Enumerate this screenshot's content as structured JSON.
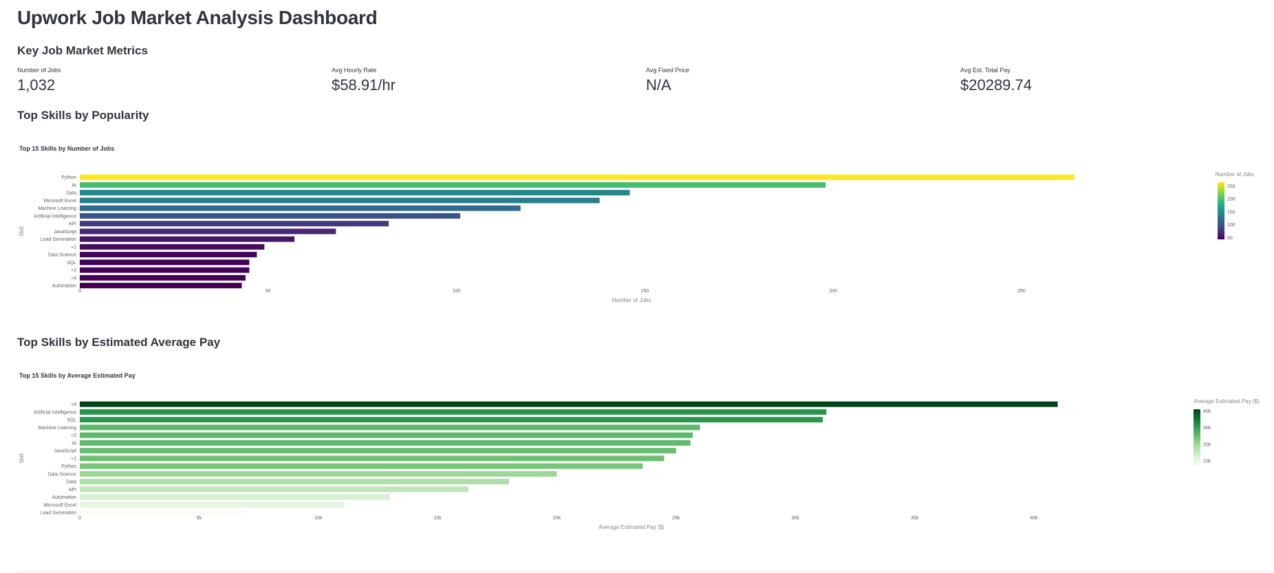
{
  "title": "Upwork Job Market Analysis Dashboard",
  "metrics_heading": "Key Job Market Metrics",
  "metrics": [
    {
      "label": "Number of Jobs",
      "value": "1,032"
    },
    {
      "label": "Avg Hourly Rate",
      "value": "$58.91/hr"
    },
    {
      "label": "Avg Fixed Price",
      "value": "N/A"
    },
    {
      "label": "Avg Est. Total Pay",
      "value": "$20289.74"
    }
  ],
  "popularity_heading": "Top Skills by Popularity",
  "pay_heading": "Top Skills by Estimated Average Pay",
  "colors": {
    "viridis": [
      "#440154",
      "#482878",
      "#3e4989",
      "#31688e",
      "#26828e",
      "#1f9e89",
      "#35b779",
      "#6ece58",
      "#b5de2b",
      "#fde725"
    ],
    "greens": [
      "#f7fcf5",
      "#e5f5e0",
      "#c7e9c0",
      "#a1d99b",
      "#74c476",
      "#41ab5d",
      "#238b45",
      "#006d2c",
      "#00441b"
    ]
  },
  "chart_data": [
    {
      "type": "bar",
      "orientation": "horizontal",
      "title": "Top 15 Skills by Number of Jobs",
      "xlabel": "Number of Jobs",
      "ylabel": "Skill",
      "categories": [
        "Python",
        "AI",
        "Data",
        "Microsoft Excel",
        "Machine Learning",
        "Artificial Intelligence",
        "API",
        "JavaScript",
        "Lead Generation",
        "+1",
        "Data Science",
        "SQL",
        "+2",
        "+4",
        "Automation"
      ],
      "values": [
        264,
        198,
        146,
        138,
        117,
        101,
        82,
        68,
        57,
        49,
        47,
        45,
        45,
        44,
        43
      ],
      "xlim": [
        0,
        271
      ],
      "xticks": [
        0,
        50,
        100,
        150,
        200,
        250
      ],
      "xtick_labels": [
        "0",
        "50",
        "100",
        "150",
        "200",
        "250"
      ],
      "colorscale": "viridis",
      "colorbar": {
        "title": "Number of Jobs",
        "range": [
          43,
          264
        ],
        "ticks": [
          50,
          100,
          150,
          200,
          250
        ],
        "tick_labels": [
          "50",
          "100",
          "150",
          "200",
          "250"
        ]
      }
    },
    {
      "type": "bar",
      "orientation": "horizontal",
      "title": "Top 15 Skills by Average Estimated Pay",
      "xlabel": "Average Estimated Pay ($)",
      "ylabel": "Skill",
      "categories": [
        "+4",
        "Artificial Intelligence",
        "SQL",
        "Machine Learning",
        "+2",
        "AI",
        "JavaScript",
        "+1",
        "Python",
        "Data Science",
        "Data",
        "API",
        "Automation",
        "Microsoft Excel",
        "Lead Generation"
      ],
      "values": [
        41000,
        31300,
        31150,
        26000,
        25700,
        25600,
        25000,
        24500,
        23600,
        20000,
        18000,
        16300,
        13000,
        11100,
        6800
      ],
      "xlim": [
        0,
        42800
      ],
      "xticks": [
        0,
        5000,
        10000,
        15000,
        20000,
        25000,
        30000,
        35000,
        40000
      ],
      "xtick_labels": [
        "0",
        "5k",
        "10k",
        "15k",
        "20k",
        "25k",
        "30k",
        "35k",
        "40k"
      ],
      "colorscale": "greens",
      "colorbar": {
        "title": "Average Estimated Pay ($)",
        "range": [
          6800,
          41000
        ],
        "ticks": [
          10000,
          20000,
          30000,
          40000
        ],
        "tick_labels": [
          "10k",
          "20k",
          "30k",
          "40k"
        ]
      }
    }
  ]
}
